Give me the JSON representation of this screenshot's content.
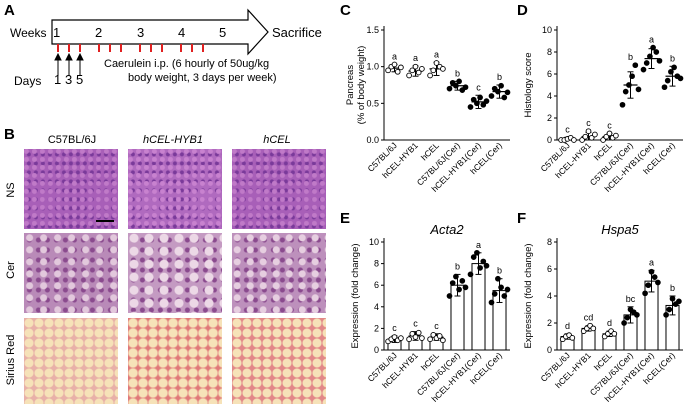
{
  "panel_labels": {
    "a": "A",
    "b": "B",
    "c": "C",
    "d": "D",
    "e": "E",
    "f": "F"
  },
  "panelA": {
    "weeks_label": "Weeks",
    "week_numbers": [
      "1",
      "2",
      "3",
      "4",
      "5"
    ],
    "sacrifice": "Sacrifice",
    "days_label": "Days",
    "days": [
      "1",
      "3",
      "5"
    ],
    "caerulein_line1": "Caerulein i.p. (6 hourly of 50ug/kg",
    "caerulein_line2": "body weight, 3 days per week)"
  },
  "panelB": {
    "columns": [
      "C57BL/6J",
      "hCEL-HYB1",
      "hCEL"
    ],
    "rows": [
      "NS",
      "Cer",
      "Sirius Red"
    ]
  },
  "colors": {
    "axis": "#000000",
    "bar_fill": "#ffffff",
    "dot": "#000000",
    "arrow_bg": "#ffffff",
    "tick_red": "#e02020"
  },
  "chart_data": [
    {
      "id": "C",
      "type": "scatter",
      "title": "",
      "ylabel": "Pancreas (% of body weight)",
      "ylim": [
        0,
        1.5
      ],
      "yticks": [
        "0.0",
        "0.5",
        "1.0",
        "1.5"
      ],
      "categories": [
        "C57BL/6J",
        "hCEL-HYB1",
        "hCEL",
        "C57BL/6J(Cer)",
        "hCEL-HYB1(Cer)",
        "hCEL(Cer)"
      ],
      "means": [
        0.98,
        0.94,
        0.97,
        0.74,
        0.52,
        0.66
      ],
      "sd": [
        0.05,
        0.07,
        0.09,
        0.06,
        0.09,
        0.09
      ],
      "points": [
        [
          0.95,
          1.0,
          1.03,
          0.93,
          0.99
        ],
        [
          0.88,
          0.95,
          1.0,
          0.92,
          0.97
        ],
        [
          0.88,
          0.95,
          1.05,
          1.0,
          0.97
        ],
        [
          0.7,
          0.78,
          0.74,
          0.8,
          0.68,
          0.72
        ],
        [
          0.45,
          0.55,
          0.5,
          0.58,
          0.48,
          0.53
        ],
        [
          0.6,
          0.7,
          0.66,
          0.74,
          0.58,
          0.65
        ]
      ],
      "letters": [
        "a",
        "a",
        "a",
        "b",
        "c",
        "b"
      ]
    },
    {
      "id": "D",
      "type": "scatter",
      "title": "",
      "ylabel": "Histology score",
      "ylim": [
        0,
        10
      ],
      "yticks": [
        "0",
        "2",
        "4",
        "6",
        "8",
        "10"
      ],
      "categories": [
        "C57BL/6J",
        "hCEL-HYB1",
        "hCEL",
        "C57BL/6J(Cer)",
        "hCEL-HYB1(Cer)",
        "hCEL(Cer)"
      ],
      "means": [
        0.1,
        0.3,
        0.3,
        5.0,
        7.4,
        5.8
      ],
      "sd": [
        0.15,
        0.4,
        0.3,
        1.2,
        0.9,
        0.9
      ],
      "points": [
        [
          0,
          0,
          0.1,
          0.2,
          0
        ],
        [
          0,
          0.3,
          0.8,
          0.2,
          0.5
        ],
        [
          0,
          0.3,
          0.6,
          0.2,
          0.4
        ],
        [
          3.2,
          4.4,
          5.0,
          5.8,
          6.8,
          4.6
        ],
        [
          6.4,
          7.0,
          7.6,
          8.4,
          8.0,
          7.2
        ],
        [
          4.8,
          5.4,
          6.2,
          6.6,
          5.8,
          5.6
        ]
      ],
      "letters": [
        "c",
        "c",
        "c",
        "b",
        "a",
        "b"
      ]
    },
    {
      "id": "E",
      "type": "bar",
      "title": "Acta2",
      "ylabel": "Expression (fold change)",
      "ylim": [
        0,
        10
      ],
      "yticks": [
        "0",
        "2",
        "4",
        "6",
        "8",
        "10"
      ],
      "categories": [
        "C57BL/6J",
        "hCEL-HYB1",
        "hCEL",
        "C57BL/6J(Cer)",
        "hCEL-HYB1(Cer)",
        "hCEL(Cer)"
      ],
      "means": [
        1.0,
        1.3,
        1.2,
        6.0,
        8.0,
        5.5
      ],
      "sd": [
        0.3,
        0.4,
        0.3,
        1.0,
        1.0,
        1.1
      ],
      "points": [
        [
          0.8,
          1.0,
          1.2,
          0.9,
          1.1
        ],
        [
          1.0,
          1.5,
          1.2,
          1.6,
          1.1
        ],
        [
          1.0,
          1.4,
          1.1,
          1.3,
          0.9
        ],
        [
          5.0,
          6.2,
          6.8,
          5.6,
          6.4,
          5.8
        ],
        [
          7.0,
          8.6,
          9.0,
          7.6,
          8.2,
          7.8
        ],
        [
          4.4,
          5.2,
          6.6,
          5.8,
          5.0,
          5.6
        ]
      ],
      "letters": [
        "c",
        "c",
        "c",
        "b",
        "a",
        "b"
      ]
    },
    {
      "id": "F",
      "type": "bar",
      "title": "Hspa5",
      "ylabel": "Expression (fold change)",
      "ylim": [
        0,
        8
      ],
      "yticks": [
        "0",
        "2",
        "4",
        "6",
        "8"
      ],
      "categories": [
        "C57BL/6J",
        "hCEL-HYB1",
        "hCEL",
        "C57BL/6J(Cer)",
        "hCEL-HYB1(Cer)",
        "hCEL(Cer)"
      ],
      "means": [
        1.0,
        1.6,
        1.2,
        2.6,
        5.1,
        3.3
      ],
      "sd": [
        0.2,
        0.2,
        0.2,
        0.6,
        0.8,
        0.7
      ],
      "points": [
        [
          0.8,
          1.0,
          1.1,
          0.9
        ],
        [
          1.4,
          1.6,
          1.8,
          1.6
        ],
        [
          1.0,
          1.2,
          1.4,
          1.2
        ],
        [
          2.0,
          2.4,
          3.0,
          2.8,
          2.6
        ],
        [
          4.2,
          4.8,
          5.8,
          5.4,
          5.0
        ],
        [
          2.6,
          3.0,
          3.8,
          3.4,
          3.6
        ]
      ],
      "letters": [
        "d",
        "cd",
        "d",
        "bc",
        "a",
        "b"
      ]
    }
  ]
}
